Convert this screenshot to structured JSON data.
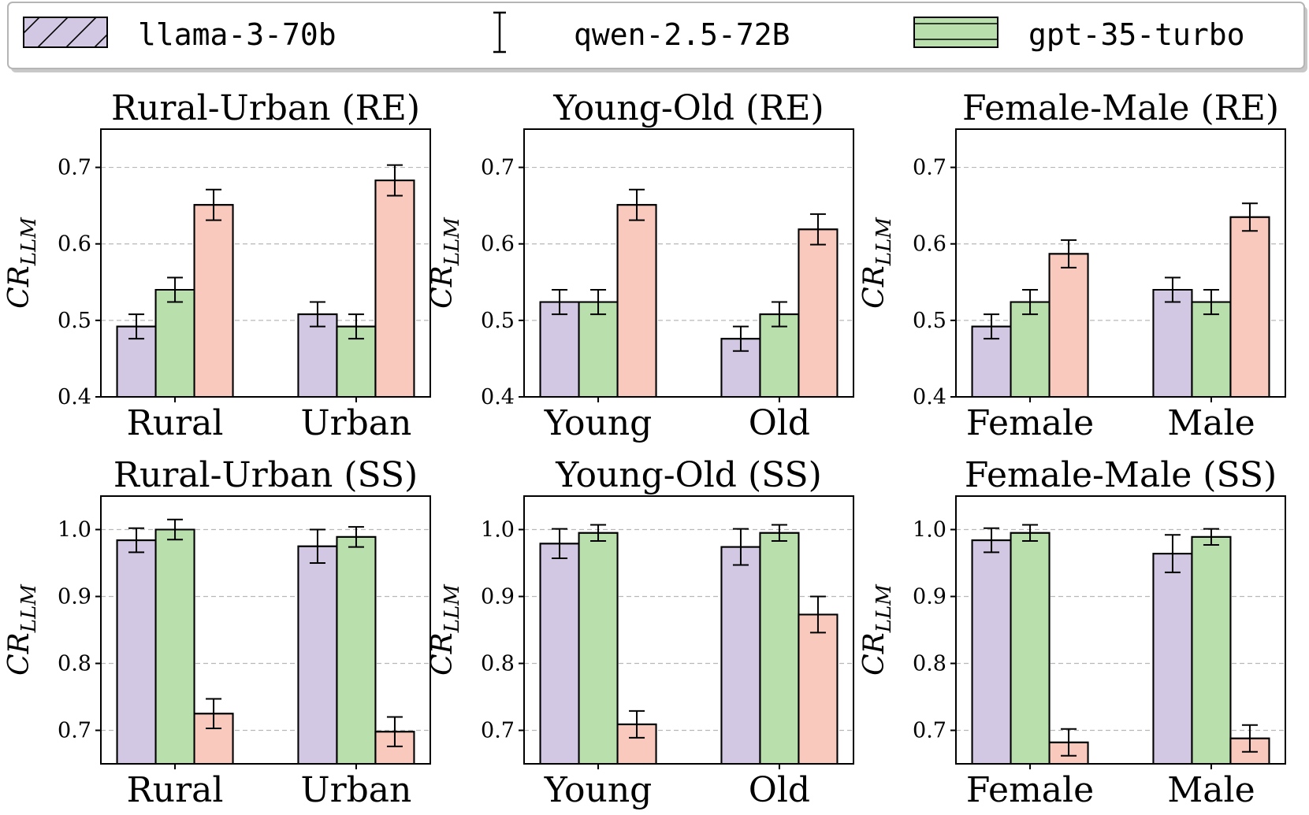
{
  "colors": {
    "llama": "#d2c8e3",
    "qwen": "#b8dfac",
    "gpt": "#f9c9bd"
  },
  "legend": [
    {
      "label": "llama-3-70b",
      "key": "llama",
      "hatch": "diag-up"
    },
    {
      "label": "qwen-2.5-72B",
      "key": "qwen",
      "hatch": "errorbar"
    },
    {
      "label": "gpt-35-turbo",
      "key": "gpt",
      "hatch": "horizontal"
    }
  ],
  "chart_data": [
    {
      "type": "bar",
      "title": "Rural-Urban (RE)",
      "ylabel": "CR_LLM",
      "ylim": [
        0.4,
        0.75
      ],
      "yticks": [
        0.4,
        0.5,
        0.6,
        0.7
      ],
      "ytick_labels": [
        "0.4",
        "0.5",
        "0.6",
        "0.7"
      ],
      "categories": [
        "Rural",
        "Urban"
      ],
      "series": [
        {
          "name": "llama-3-70b",
          "values": [
            0.492,
            0.508
          ],
          "errors": [
            0.016,
            0.016
          ]
        },
        {
          "name": "gpt-35-turbo",
          "values": [
            0.54,
            0.492
          ],
          "errors": [
            0.016,
            0.016
          ]
        },
        {
          "name": "qwen-2.5-72B",
          "values": [
            0.651,
            0.683
          ],
          "errors": [
            0.02,
            0.02
          ]
        }
      ]
    },
    {
      "type": "bar",
      "title": "Young-Old (RE)",
      "ylabel": "CR_LLM",
      "ylim": [
        0.4,
        0.75
      ],
      "yticks": [
        0.4,
        0.5,
        0.6,
        0.7
      ],
      "ytick_labels": [
        "0.4",
        "0.5",
        "0.6",
        "0.7"
      ],
      "categories": [
        "Young",
        "Old"
      ],
      "series": [
        {
          "name": "llama-3-70b",
          "values": [
            0.524,
            0.476
          ],
          "errors": [
            0.016,
            0.016
          ]
        },
        {
          "name": "gpt-35-turbo",
          "values": [
            0.524,
            0.508
          ],
          "errors": [
            0.016,
            0.016
          ]
        },
        {
          "name": "qwen-2.5-72B",
          "values": [
            0.651,
            0.619
          ],
          "errors": [
            0.02,
            0.02
          ]
        }
      ]
    },
    {
      "type": "bar",
      "title": "Female-Male (RE)",
      "ylabel": "CR_LLM",
      "ylim": [
        0.4,
        0.75
      ],
      "yticks": [
        0.4,
        0.5,
        0.6,
        0.7
      ],
      "ytick_labels": [
        "0.4",
        "0.5",
        "0.6",
        "0.7"
      ],
      "categories": [
        "Female",
        "Male"
      ],
      "series": [
        {
          "name": "llama-3-70b",
          "values": [
            0.492,
            0.54
          ],
          "errors": [
            0.016,
            0.016
          ]
        },
        {
          "name": "gpt-35-turbo",
          "values": [
            0.524,
            0.524
          ],
          "errors": [
            0.016,
            0.016
          ]
        },
        {
          "name": "qwen-2.5-72B",
          "values": [
            0.587,
            0.635
          ],
          "errors": [
            0.018,
            0.018
          ]
        }
      ]
    },
    {
      "type": "bar",
      "title": "Rural-Urban (SS)",
      "ylabel": "CR_LLM",
      "ylim": [
        0.65,
        1.05
      ],
      "yticks": [
        0.7,
        0.8,
        0.9,
        1.0
      ],
      "ytick_labels": [
        "0.7",
        "0.8",
        "0.9",
        "1.0"
      ],
      "categories": [
        "Rural",
        "Urban"
      ],
      "series": [
        {
          "name": "llama-3-70b",
          "values": [
            0.984,
            0.975
          ],
          "errors": [
            0.018,
            0.025
          ]
        },
        {
          "name": "gpt-35-turbo",
          "values": [
            1.0,
            0.989
          ],
          "errors": [
            0.015,
            0.015
          ]
        },
        {
          "name": "qwen-2.5-72B",
          "values": [
            0.725,
            0.698
          ],
          "errors": [
            0.022,
            0.022
          ]
        }
      ]
    },
    {
      "type": "bar",
      "title": "Young-Old (SS)",
      "ylabel": "CR_LLM",
      "ylim": [
        0.65,
        1.05
      ],
      "yticks": [
        0.7,
        0.8,
        0.9,
        1.0
      ],
      "ytick_labels": [
        "0.7",
        "0.8",
        "0.9",
        "1.0"
      ],
      "categories": [
        "Young",
        "Old"
      ],
      "series": [
        {
          "name": "llama-3-70b",
          "values": [
            0.979,
            0.974
          ],
          "errors": [
            0.022,
            0.027
          ]
        },
        {
          "name": "gpt-35-turbo",
          "values": [
            0.995,
            0.995
          ],
          "errors": [
            0.012,
            0.012
          ]
        },
        {
          "name": "qwen-2.5-72B",
          "values": [
            0.709,
            0.873
          ],
          "errors": [
            0.02,
            0.027
          ]
        }
      ]
    },
    {
      "type": "bar",
      "title": "Female-Male (SS)",
      "ylabel": "CR_LLM",
      "ylim": [
        0.65,
        1.05
      ],
      "yticks": [
        0.7,
        0.8,
        0.9,
        1.0
      ],
      "ytick_labels": [
        "0.7",
        "0.8",
        "0.9",
        "1.0"
      ],
      "categories": [
        "Female",
        "Male"
      ],
      "series": [
        {
          "name": "llama-3-70b",
          "values": [
            0.984,
            0.964
          ],
          "errors": [
            0.018,
            0.028
          ]
        },
        {
          "name": "gpt-35-turbo",
          "values": [
            0.995,
            0.989
          ],
          "errors": [
            0.012,
            0.012
          ]
        },
        {
          "name": "qwen-2.5-72B",
          "values": [
            0.682,
            0.688
          ],
          "errors": [
            0.02,
            0.02
          ]
        }
      ]
    }
  ]
}
